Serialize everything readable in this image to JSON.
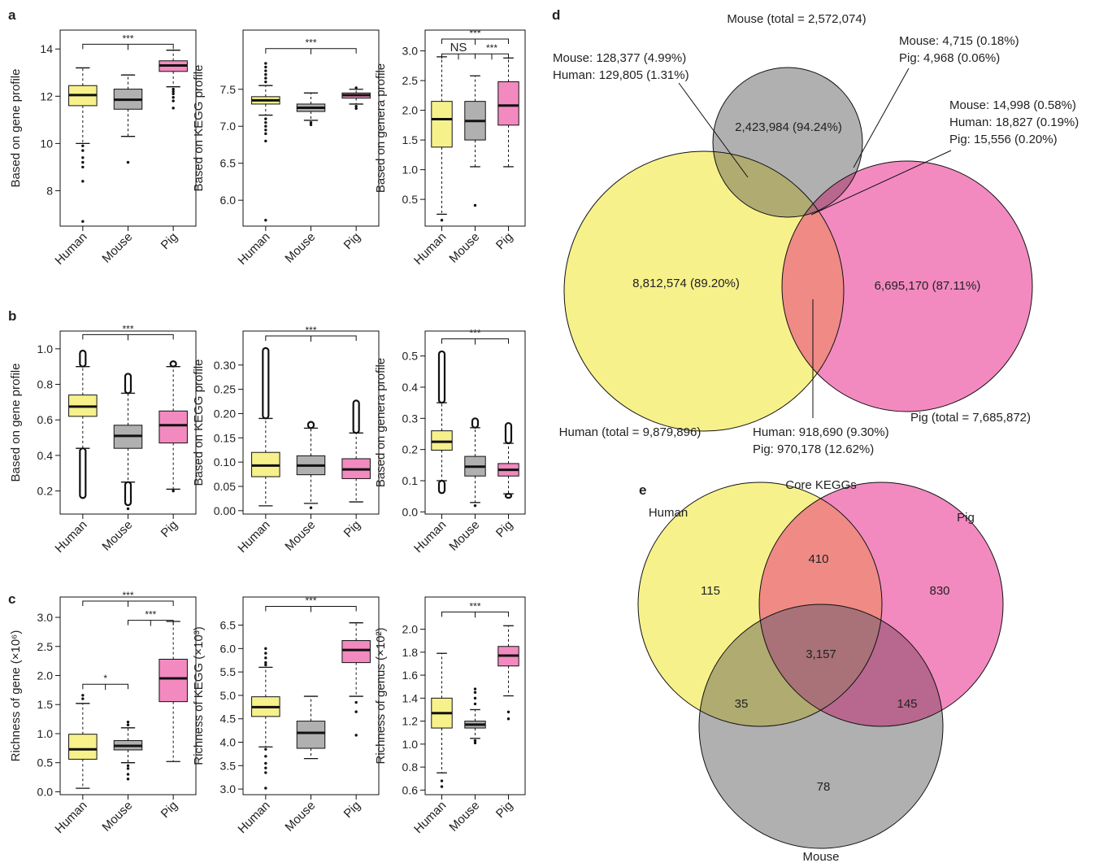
{
  "colors": {
    "human": "#f7f18c",
    "mouse": "#b0b0b0",
    "pig": "#f28ac0",
    "hm": "#b0ab70",
    "hp": "#ef8a85",
    "mp": "#b8678e",
    "all": "#a97278"
  },
  "panel_labels": [
    "a",
    "b",
    "c",
    "d",
    "e"
  ],
  "chart_data": [
    {
      "type": "box",
      "panel": "a",
      "ylabel": "Based on gene profile",
      "categories": [
        "Human",
        "Mouse",
        "Pig"
      ],
      "yticks": [
        8,
        10,
        12,
        14
      ],
      "ylim": [
        6.5,
        14.8
      ],
      "boxes": [
        {
          "name": "Human",
          "whisker_low": 10.0,
          "q1": 11.6,
          "median": 12.05,
          "q3": 12.45,
          "whisker_high": 13.2,
          "outliers": [
            9.9,
            9.7,
            9.4,
            9.2,
            9.0,
            8.4,
            6.7
          ]
        },
        {
          "name": "Mouse",
          "whisker_low": 10.3,
          "q1": 11.45,
          "median": 11.85,
          "q3": 12.3,
          "whisker_high": 12.9,
          "outliers": [
            9.2
          ]
        },
        {
          "name": "Pig",
          "whisker_low": 12.4,
          "q1": 13.05,
          "median": 13.3,
          "q3": 13.5,
          "whisker_high": 13.95,
          "outliers": [
            12.3,
            12.2,
            12.1,
            11.95,
            11.8,
            11.5
          ]
        }
      ],
      "significance": [
        {
          "from": 0,
          "to": 2,
          "label": "***",
          "level": 14.2
        }
      ]
    },
    {
      "type": "box",
      "panel": "a",
      "ylabel": "Based on KEGG profile",
      "categories": [
        "Human",
        "Mouse",
        "Pig"
      ],
      "yticks": [
        6.0,
        6.5,
        7.0,
        7.5
      ],
      "ylim": [
        5.65,
        8.3
      ],
      "boxes": [
        {
          "name": "Human",
          "whisker_low": 7.15,
          "q1": 7.3,
          "median": 7.35,
          "q3": 7.4,
          "whisker_high": 7.55,
          "outliers": [
            7.6,
            7.65,
            7.7,
            7.75,
            7.8,
            7.85,
            7.1,
            7.05,
            7.0,
            6.95,
            6.9,
            6.8,
            5.73
          ]
        },
        {
          "name": "Mouse",
          "whisker_low": 7.08,
          "q1": 7.2,
          "median": 7.25,
          "q3": 7.3,
          "whisker_high": 7.45,
          "outliers": [
            7.05,
            7.02
          ]
        },
        {
          "name": "Pig",
          "whisker_low": 7.3,
          "q1": 7.38,
          "median": 7.42,
          "q3": 7.45,
          "whisker_high": 7.5,
          "outliers": [
            7.52,
            7.27,
            7.24
          ]
        }
      ],
      "significance": [
        {
          "from": 0,
          "to": 2,
          "label": "***",
          "level": 8.05
        }
      ]
    },
    {
      "type": "box",
      "panel": "a",
      "ylabel": "Based on genera profile",
      "categories": [
        "Human",
        "Mouse",
        "Pig"
      ],
      "yticks": [
        0.5,
        1.0,
        1.5,
        2.0,
        2.5,
        3.0
      ],
      "ylim": [
        0.05,
        3.35
      ],
      "boxes": [
        {
          "name": "Human",
          "whisker_low": 0.25,
          "q1": 1.38,
          "median": 1.85,
          "q3": 2.15,
          "whisker_high": 2.9,
          "outliers": [
            0.15
          ]
        },
        {
          "name": "Mouse",
          "whisker_low": 1.05,
          "q1": 1.5,
          "median": 1.82,
          "q3": 2.15,
          "whisker_high": 2.58,
          "outliers": [
            0.4
          ]
        },
        {
          "name": "Pig",
          "whisker_low": 1.05,
          "q1": 1.75,
          "median": 2.08,
          "q3": 2.48,
          "whisker_high": 2.88,
          "outliers": []
        }
      ],
      "significance": [
        {
          "from": 0,
          "to": 1,
          "label": "NS",
          "level": 2.95
        },
        {
          "from": 1,
          "to": 2,
          "label": "***",
          "level": 2.95
        },
        {
          "from": 0,
          "to": 2,
          "label": "***",
          "level": 3.2
        }
      ]
    },
    {
      "type": "box",
      "panel": "b",
      "ylabel": "Based on gene profile",
      "categories": [
        "Human",
        "Mouse",
        "Pig"
      ],
      "yticks": [
        0.2,
        0.4,
        0.6,
        0.8,
        1.0
      ],
      "ylim": [
        0.07,
        1.1
      ],
      "boxes": [
        {
          "name": "Human",
          "whisker_low": 0.44,
          "q1": 0.62,
          "median": 0.675,
          "q3": 0.74,
          "whisker_high": 0.9,
          "outlier_runs": [
            [
              0.9,
              0.99
            ],
            [
              0.16,
              0.44
            ]
          ]
        },
        {
          "name": "Mouse",
          "whisker_low": 0.25,
          "q1": 0.44,
          "median": 0.51,
          "q3": 0.57,
          "whisker_high": 0.75,
          "outlier_runs": [
            [
              0.75,
              0.86
            ],
            [
              0.12,
              0.25
            ]
          ],
          "outliers": [
            0.1
          ]
        },
        {
          "name": "Pig",
          "whisker_low": 0.21,
          "q1": 0.47,
          "median": 0.57,
          "q3": 0.65,
          "whisker_high": 0.9,
          "outlier_runs": [
            [
              0.9,
              0.93
            ]
          ],
          "outliers": [
            0.2
          ]
        }
      ],
      "significance": [
        {
          "from": 0,
          "to": 2,
          "label": "***",
          "level": 1.08
        }
      ]
    },
    {
      "type": "box",
      "panel": "b",
      "ylabel": "Based on KEGG profile",
      "categories": [
        "Human",
        "Mouse",
        "Pig"
      ],
      "yticks": [
        0.0,
        0.05,
        0.1,
        0.15,
        0.2,
        0.25,
        0.3
      ],
      "ylim": [
        -0.007,
        0.37
      ],
      "boxes": [
        {
          "name": "Human",
          "whisker_low": 0.01,
          "q1": 0.07,
          "median": 0.093,
          "q3": 0.12,
          "whisker_high": 0.19,
          "outlier_runs": [
            [
              0.19,
              0.335
            ]
          ]
        },
        {
          "name": "Mouse",
          "whisker_low": 0.015,
          "q1": 0.074,
          "median": 0.093,
          "q3": 0.113,
          "whisker_high": 0.17,
          "outlier_runs": [
            [
              0.17,
              0.183
            ]
          ],
          "outliers": [
            0.006
          ]
        },
        {
          "name": "Pig",
          "whisker_low": 0.018,
          "q1": 0.066,
          "median": 0.085,
          "q3": 0.107,
          "whisker_high": 0.16,
          "outlier_runs": [
            [
              0.16,
              0.227
            ]
          ]
        }
      ],
      "significance": [
        {
          "from": 0,
          "to": 2,
          "label": "***",
          "level": 0.36
        }
      ]
    },
    {
      "type": "box",
      "panel": "b",
      "ylabel": "Based on genera profile",
      "categories": [
        "Human",
        "Mouse",
        "Pig"
      ],
      "yticks": [
        0.0,
        0.1,
        0.2,
        0.3,
        0.4,
        0.5
      ],
      "ylim": [
        -0.007,
        0.58
      ],
      "boxes": [
        {
          "name": "Human",
          "whisker_low": 0.1,
          "q1": 0.198,
          "median": 0.225,
          "q3": 0.26,
          "whisker_high": 0.35,
          "outlier_runs": [
            [
              0.35,
              0.515
            ],
            [
              0.06,
              0.1
            ]
          ]
        },
        {
          "name": "Mouse",
          "whisker_low": 0.03,
          "q1": 0.115,
          "median": 0.145,
          "q3": 0.178,
          "whisker_high": 0.27,
          "outlier_runs": [
            [
              0.27,
              0.3
            ]
          ],
          "outliers": [
            0.02
          ]
        },
        {
          "name": "Pig",
          "whisker_low": 0.058,
          "q1": 0.115,
          "median": 0.135,
          "q3": 0.155,
          "whisker_high": 0.22,
          "outlier_runs": [
            [
              0.22,
              0.285
            ],
            [
              0.045,
              0.058
            ]
          ]
        }
      ],
      "significance": [
        {
          "from": 0,
          "to": 2,
          "label": "***",
          "level": 0.555
        }
      ]
    },
    {
      "type": "box",
      "panel": "c",
      "ylabel": "Richness of gene (×10⁶)",
      "categories": [
        "Human",
        "Mouse",
        "Pig"
      ],
      "yticks": [
        0.0,
        0.5,
        1.0,
        1.5,
        2.0,
        2.5,
        3.0
      ],
      "ylim": [
        -0.05,
        3.35
      ],
      "boxes": [
        {
          "name": "Human",
          "whisker_low": 0.06,
          "q1": 0.56,
          "median": 0.73,
          "q3": 0.99,
          "whisker_high": 1.52,
          "outliers": [
            1.6,
            1.66
          ]
        },
        {
          "name": "Mouse",
          "whisker_low": 0.5,
          "q1": 0.72,
          "median": 0.79,
          "q3": 0.88,
          "whisker_high": 1.1,
          "outliers": [
            1.15,
            1.2,
            0.45,
            0.4,
            0.3,
            0.22
          ]
        },
        {
          "name": "Pig",
          "whisker_low": 0.52,
          "q1": 1.55,
          "median": 1.95,
          "q3": 2.28,
          "whisker_high": 2.93,
          "outliers": []
        }
      ],
      "significance": [
        {
          "from": 0,
          "to": 1,
          "label": "*",
          "level": 1.85
        },
        {
          "from": 1,
          "to": 2,
          "label": "***",
          "level": 2.95
        },
        {
          "from": 0,
          "to": 2,
          "label": "***",
          "level": 3.28
        }
      ]
    },
    {
      "type": "box",
      "panel": "c",
      "ylabel": "Richness of KEGG (×10³)",
      "categories": [
        "Human",
        "Mouse",
        "Pig"
      ],
      "yticks": [
        3.0,
        3.5,
        4.0,
        4.5,
        5.0,
        5.5,
        6.0,
        6.5
      ],
      "ylim": [
        2.88,
        7.1
      ],
      "boxes": [
        {
          "name": "Human",
          "whisker_low": 3.9,
          "q1": 4.55,
          "median": 4.75,
          "q3": 4.97,
          "whisker_high": 5.6,
          "outliers": [
            5.65,
            5.7,
            5.8,
            5.9,
            6.0,
            3.85,
            3.7,
            3.55,
            3.45,
            3.35,
            3.02
          ]
        },
        {
          "name": "Mouse",
          "whisker_low": 3.65,
          "q1": 3.87,
          "median": 4.2,
          "q3": 4.45,
          "whisker_high": 4.98,
          "outliers": []
        },
        {
          "name": "Pig",
          "whisker_low": 4.98,
          "q1": 5.7,
          "median": 5.97,
          "q3": 6.17,
          "whisker_high": 6.55,
          "outliers": [
            4.85,
            4.65,
            4.15
          ]
        }
      ],
      "significance": [
        {
          "from": 0,
          "to": 2,
          "label": "***",
          "level": 6.9
        }
      ]
    },
    {
      "type": "box",
      "panel": "c",
      "ylabel": "Richness of genus (×10²)",
      "categories": [
        "Human",
        "Mouse",
        "Pig"
      ],
      "yticks": [
        0.6,
        0.8,
        1.0,
        1.2,
        1.4,
        1.6,
        1.8,
        2.0
      ],
      "ylim": [
        0.56,
        2.28
      ],
      "boxes": [
        {
          "name": "Human",
          "whisker_low": 0.75,
          "q1": 1.14,
          "median": 1.27,
          "q3": 1.4,
          "whisker_high": 1.79,
          "outliers": [
            0.68,
            0.63
          ]
        },
        {
          "name": "Mouse",
          "whisker_low": 1.05,
          "q1": 1.14,
          "median": 1.17,
          "q3": 1.2,
          "whisker_high": 1.3,
          "outliers": [
            1.35,
            1.4,
            1.45,
            1.48,
            1.03,
            1.01
          ]
        },
        {
          "name": "Pig",
          "whisker_low": 1.42,
          "q1": 1.68,
          "median": 1.77,
          "q3": 1.85,
          "whisker_high": 2.03,
          "outliers": [
            1.28,
            1.22
          ]
        }
      ],
      "significance": [
        {
          "from": 0,
          "to": 2,
          "label": "***",
          "level": 2.15
        }
      ]
    },
    {
      "type": "venn",
      "panel": "d",
      "set_labels": {
        "mouse": "Mouse (total = 2,572,074)",
        "human": "Human (total = 9,879,896)",
        "pig": "Pig (total = 7,685,872)"
      },
      "region_labels": {
        "mouse_only": "2,423,984 (94.24%)",
        "human_only": "8,812,574 (89.20%)",
        "pig_only": "6,695,170 (87.11%)"
      },
      "callouts": {
        "mouse_human": [
          "Mouse: 128,377 (4.99%)",
          "Human: 129,805 (1.31%)"
        ],
        "mouse_pig": [
          "Mouse: 4,715 (0.18%)",
          "Pig: 4,968 (0.06%)"
        ],
        "all_three": [
          "Mouse: 14,998 (0.58%)",
          "Human: 18,827 (0.19%)",
          "Pig: 15,556 (0.20%)"
        ],
        "human_pig": [
          "Human: 918,690 (9.30%)",
          "Pig: 970,178 (12.62%)"
        ]
      }
    },
    {
      "type": "venn",
      "panel": "e",
      "title": "Core KEGGs",
      "set_labels": {
        "human": "Human",
        "pig": "Pig",
        "mouse": "Mouse"
      },
      "regions": {
        "human_only": "115",
        "pig_only": "830",
        "mouse_only": "78",
        "human_pig": "410",
        "human_mouse": "35",
        "pig_mouse": "145",
        "all_three": "3,157"
      }
    }
  ]
}
